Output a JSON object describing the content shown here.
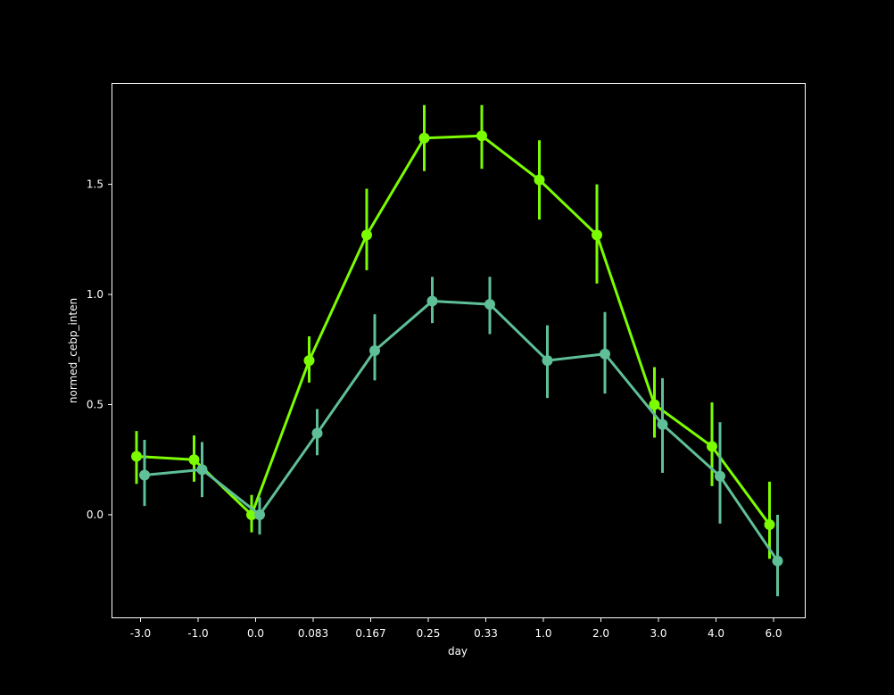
{
  "chart_data": {
    "type": "line",
    "title": "",
    "xlabel": "day",
    "ylabel": "normed_cebp_inten",
    "categories": [
      "-3.0",
      "-1.0",
      "0.0",
      "0.083",
      "0.167",
      "0.25",
      "0.33",
      "1.0",
      "2.0",
      "3.0",
      "4.0",
      "6.0"
    ],
    "ylim": [
      -0.47,
      1.96
    ],
    "yticks": [
      0.0,
      0.5,
      1.0,
      1.5
    ],
    "ytick_labels": [
      "0.0",
      "0.5",
      "1.0",
      "1.5"
    ],
    "grid": false,
    "legend": "none",
    "background": "#000000",
    "series": [
      {
        "color": "#7cfc00",
        "values": [
          0.265,
          0.25,
          0.0,
          0.7,
          1.27,
          1.71,
          1.72,
          1.52,
          1.27,
          0.5,
          0.31,
          -0.045
        ],
        "err_low": [
          0.14,
          0.15,
          -0.08,
          0.6,
          1.11,
          1.56,
          1.57,
          1.34,
          1.05,
          0.35,
          0.13,
          -0.2
        ],
        "err_high": [
          0.38,
          0.36,
          0.09,
          0.81,
          1.48,
          1.86,
          1.86,
          1.7,
          1.5,
          0.67,
          0.51,
          0.15
        ]
      },
      {
        "color": "#5fbf97",
        "values": [
          0.18,
          0.205,
          0.0,
          0.37,
          0.745,
          0.97,
          0.955,
          0.7,
          0.73,
          0.41,
          0.175,
          -0.21
        ],
        "err_low": [
          0.04,
          0.08,
          -0.09,
          0.27,
          0.61,
          0.87,
          0.82,
          0.53,
          0.55,
          0.19,
          -0.04,
          -0.37
        ],
        "err_high": [
          0.34,
          0.33,
          0.08,
          0.48,
          0.91,
          1.08,
          1.08,
          0.86,
          0.92,
          0.62,
          0.42,
          0.0
        ]
      }
    ]
  }
}
